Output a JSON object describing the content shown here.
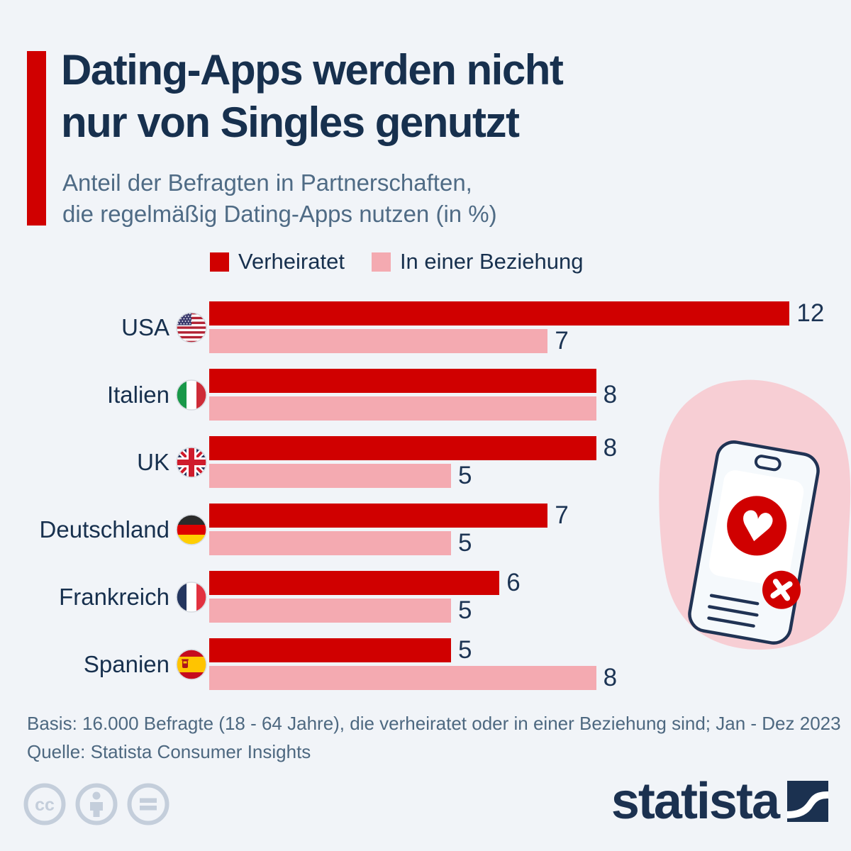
{
  "header": {
    "title_line1": "Dating-Apps werden nicht",
    "title_line2": "nur von Singles genutzt",
    "subtitle_line1": "Anteil der Befragten in Partnerschaften,",
    "subtitle_line2": "die regelmäßig Dating-Apps nutzen (in %)"
  },
  "legend": [
    {
      "label": "Verheiratet",
      "color": "#d00000"
    },
    {
      "label": "In einer Beziehung",
      "color": "#f4aab1"
    }
  ],
  "chart_data": {
    "type": "bar",
    "orientation": "horizontal",
    "title": "Anteil der Befragten in Partnerschaften, die regelmäßig Dating-Apps nutzen (in %)",
    "categories": [
      "USA",
      "Italien",
      "UK",
      "Deutschland",
      "Frankreich",
      "Spanien"
    ],
    "flags": [
      "usa-flag-icon",
      "italy-flag-icon",
      "uk-flag-icon",
      "germany-flag-icon",
      "france-flag-icon",
      "spain-flag-icon"
    ],
    "series": [
      {
        "name": "Verheiratet",
        "color": "#d00000",
        "values": [
          12,
          8,
          8,
          7,
          6,
          5
        ]
      },
      {
        "name": "In einer Beziehung",
        "color": "#f4aab1",
        "values": [
          7,
          8,
          5,
          5,
          5,
          8
        ]
      }
    ],
    "xlim": [
      0,
      12.6
    ],
    "grid": false,
    "legend_position": "top",
    "value_labels": true
  },
  "footer": {
    "basis": "Basis: 16.000 Befragte (18 - 64 Jahre), die verheiratet oder in einer Beziehung sind; Jan - Dez 2023",
    "quelle": "Quelle: Statista Consumer Insights"
  },
  "branding": {
    "logo_text": "statista",
    "license_icons": [
      "cc-icon",
      "attribution-person-icon",
      "no-derivatives-equals-icon"
    ]
  },
  "colors": {
    "background": "#f1f4f8",
    "accent_red": "#d00000",
    "bar_pink": "#f4aab1",
    "blob_pink": "#f7ced4",
    "navy": "#17304e",
    "subtitle_gray": "#4f6b85",
    "cc_gray": "#c4cedb"
  }
}
